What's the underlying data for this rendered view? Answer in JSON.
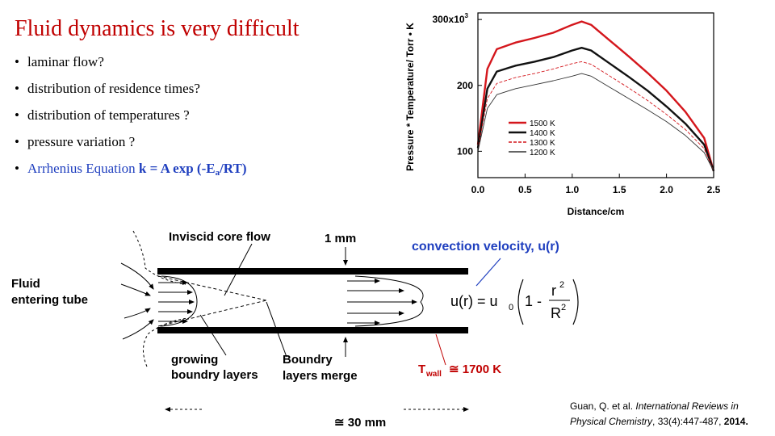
{
  "slide": {
    "title": "Fluid dynamics is very difficult",
    "bullet_marker": "•",
    "bullets": [
      "laminar flow?",
      "distribution of residence times?",
      "distribution of temperatures ?",
      "pressure variation ?"
    ],
    "arrhenius": {
      "label": "Arrhenius Equation",
      "eq_main": "k = A exp (-E",
      "eq_sub": "a",
      "eq_end": "/RT)"
    }
  },
  "chart_data": {
    "type": "line",
    "xlabel": "Distance/cm",
    "ylabel": "Pressure * Temperature/ Torr • K",
    "xlim": [
      0,
      2.5
    ],
    "ylim": [
      60,
      310
    ],
    "x_ticks": [
      "0.0",
      "0.5",
      "1.0",
      "1.5",
      "2.0",
      "2.5"
    ],
    "y_ticks": [
      {
        "label": "100",
        "value": 100
      },
      {
        "label": "200",
        "value": 200
      },
      {
        "label": "300x10",
        "value": 300,
        "exponent": "3"
      }
    ],
    "legend_position": "center-right",
    "series": [
      {
        "name": "1500 K",
        "color": "#d4161c",
        "width": 2.4,
        "dash": "",
        "x": [
          0,
          0.1,
          0.2,
          0.4,
          0.6,
          0.8,
          1.0,
          1.1,
          1.2,
          1.4,
          1.6,
          1.8,
          2.0,
          2.2,
          2.4,
          2.5
        ],
        "y": [
          110,
          225,
          255,
          265,
          272,
          280,
          292,
          297,
          292,
          268,
          244,
          219,
          192,
          160,
          120,
          70
        ]
      },
      {
        "name": "1400 K",
        "color": "#111111",
        "width": 2.4,
        "dash": "",
        "x": [
          0,
          0.1,
          0.2,
          0.4,
          0.6,
          0.8,
          1.0,
          1.1,
          1.2,
          1.4,
          1.6,
          1.8,
          2.0,
          2.2,
          2.4,
          2.5
        ],
        "y": [
          105,
          195,
          221,
          230,
          236,
          243,
          253,
          257,
          253,
          233,
          213,
          192,
          168,
          142,
          110,
          70
        ]
      },
      {
        "name": "1300 K",
        "color": "#d4161c",
        "width": 0.9,
        "dash": "4 2",
        "x": [
          0,
          0.1,
          0.2,
          0.4,
          0.6,
          0.8,
          1.0,
          1.1,
          1.2,
          1.4,
          1.6,
          1.8,
          2.0,
          2.2,
          2.4,
          2.5
        ],
        "y": [
          102,
          180,
          203,
          212,
          218,
          225,
          233,
          236,
          232,
          214,
          196,
          177,
          156,
          133,
          104,
          70
        ]
      },
      {
        "name": "1200 K",
        "color": "#333333",
        "width": 0.9,
        "dash": "",
        "x": [
          0,
          0.1,
          0.2,
          0.4,
          0.6,
          0.8,
          1.0,
          1.1,
          1.2,
          1.4,
          1.6,
          1.8,
          2.0,
          2.2,
          2.4,
          2.5
        ],
        "y": [
          100,
          165,
          186,
          195,
          201,
          207,
          214,
          218,
          214,
          197,
          180,
          163,
          145,
          124,
          98,
          70
        ]
      }
    ]
  },
  "diagram": {
    "core_flow": "Inviscid core flow",
    "wall_thickness": "1 mm",
    "convection_title": "convection velocity, u(r)",
    "fluid_line1": "Fluid",
    "fluid_line2": "entering tube",
    "growing_line1": "growing",
    "growing_line2": "boundry layers",
    "merge_line1": "Boundry",
    "merge_line2": "layers merge",
    "eq_lhs": "u(r) = u",
    "eq_sub": "0",
    "eq_one_minus": "1 -",
    "eq_num": "r",
    "eq_den": "R",
    "eq_exp": "2",
    "twall_t": "T",
    "twall_sub": "wall",
    "twall_val": "≅ 1700 K",
    "length": "≅ 30 mm"
  },
  "citation": {
    "authors": "Guan, Q. et al. ",
    "journal": "International Reviews in",
    "journal2": "Physical Chemistry",
    "details": ", 33(4):447-487, ",
    "year": "2014."
  }
}
